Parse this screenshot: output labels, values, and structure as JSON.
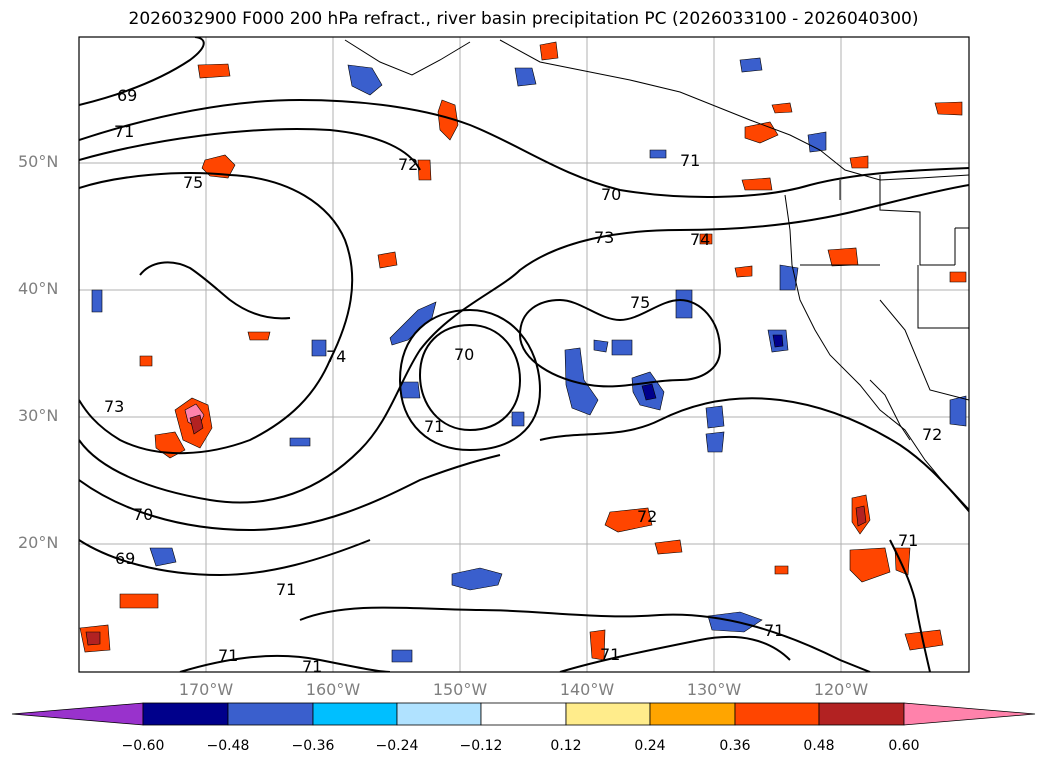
{
  "title": "2026032900 F000 200 hPa refract., river basin precipitation PC (2026033100 - 2026040300)",
  "lat_labels": [
    "50°N",
    "40°N",
    "30°N",
    "20°N"
  ],
  "lon_labels": [
    "170°W",
    "160°W",
    "150°W",
    "140°W",
    "130°W",
    "120°W"
  ],
  "colorbar": {
    "ticks": [
      "−0.60",
      "−0.48",
      "−0.36",
      "−0.24",
      "−0.12",
      "0.12",
      "0.24",
      "0.36",
      "0.48",
      "0.60"
    ],
    "colors": [
      "#9932cc",
      "#00008b",
      "#3a5fcd",
      "#00bfff",
      "#b0e2ff",
      "#ffffff",
      "#ffec8b",
      "#ffa500",
      "#ff4500",
      "#b22222",
      "#ff82ab"
    ]
  },
  "contour_labels": [
    "69",
    "71",
    "75",
    "72",
    "70",
    "73",
    "74",
    "75",
    "74",
    "70",
    "71",
    "73",
    "70",
    "69",
    "71",
    "71",
    "71",
    "71",
    "71",
    "72",
    "71",
    "72",
    "71"
  ]
}
